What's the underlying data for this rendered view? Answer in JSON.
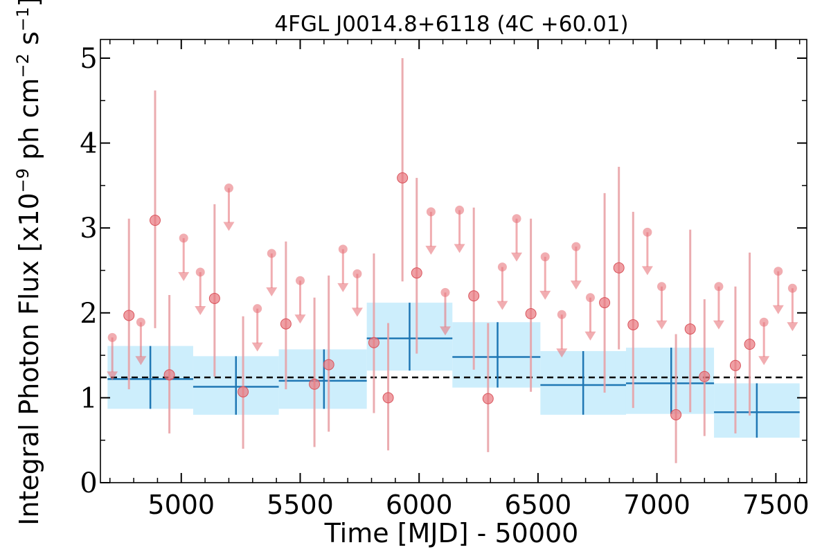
{
  "chart_data": {
    "type": "scatter",
    "title": "4FGL J0014.8+6118 (4C +60.01)",
    "xlabel": "Time [MJD] - 50000",
    "ylabel": "Integral Photon Flux [x10",
    "ylabel_exp": "−9",
    "ylabel_unit1": " ph cm",
    "ylabel_exp2": "−2",
    "ylabel_unit2": " s",
    "ylabel_exp3": "−1",
    "ylabel_close": "]",
    "xlim": [
      4660,
      7630
    ],
    "ylim": [
      0,
      5.22
    ],
    "xticks": [
      5000,
      5500,
      6000,
      6500,
      7000,
      7500
    ],
    "yticks": [
      0,
      1,
      2,
      3,
      4,
      5
    ],
    "grid": false,
    "colors": {
      "points": "#e8767d",
      "errorbars": "#e89ea2",
      "binned": "#1f77b4",
      "band": "#cdeefc",
      "mean_line": "#000000"
    },
    "mean_flux": 1.24,
    "series": [
      {
        "kind": "detections",
        "points": [
          {
            "x": 4780,
            "y": 1.97,
            "lo": 1.1,
            "hi": 3.11
          },
          {
            "x": 4890,
            "y": 3.09,
            "lo": 1.82,
            "hi": 4.62
          },
          {
            "x": 4950,
            "y": 1.27,
            "lo": 0.58,
            "hi": 2.21
          },
          {
            "x": 5140,
            "y": 2.17,
            "lo": 1.25,
            "hi": 3.28
          },
          {
            "x": 5260,
            "y": 1.07,
            "lo": 0.4,
            "hi": 1.96
          },
          {
            "x": 5440,
            "y": 1.87,
            "lo": 1.1,
            "hi": 2.84
          },
          {
            "x": 5560,
            "y": 1.16,
            "lo": 0.42,
            "hi": 2.18
          },
          {
            "x": 5620,
            "y": 1.39,
            "lo": 0.6,
            "hi": 2.44
          },
          {
            "x": 5810,
            "y": 1.65,
            "lo": 0.82,
            "hi": 2.7
          },
          {
            "x": 5870,
            "y": 1.0,
            "lo": 0.38,
            "hi": 1.88
          },
          {
            "x": 5930,
            "y": 3.59,
            "lo": 2.37,
            "hi": 5.0
          },
          {
            "x": 5990,
            "y": 2.47,
            "lo": 1.52,
            "hi": 3.59
          },
          {
            "x": 6230,
            "y": 2.2,
            "lo": 1.33,
            "hi": 3.24
          },
          {
            "x": 6290,
            "y": 0.99,
            "lo": 0.36,
            "hi": 1.88
          },
          {
            "x": 6470,
            "y": 1.99,
            "lo": 1.07,
            "hi": 3.11
          },
          {
            "x": 6780,
            "y": 2.12,
            "lo": 1.06,
            "hi": 3.41
          },
          {
            "x": 6840,
            "y": 2.53,
            "lo": 1.57,
            "hi": 3.72
          },
          {
            "x": 6900,
            "y": 1.86,
            "lo": 0.88,
            "hi": 3.19
          },
          {
            "x": 7080,
            "y": 0.8,
            "lo": 0.23,
            "hi": 1.75
          },
          {
            "x": 7140,
            "y": 1.81,
            "lo": 0.83,
            "hi": 2.98
          },
          {
            "x": 7200,
            "y": 1.25,
            "lo": 0.55,
            "hi": 2.16
          },
          {
            "x": 7330,
            "y": 1.38,
            "lo": 0.58,
            "hi": 2.31
          },
          {
            "x": 7390,
            "y": 1.63,
            "lo": 0.79,
            "hi": 2.71
          }
        ]
      },
      {
        "kind": "upper_limits",
        "points": [
          {
            "x": 4710,
            "y": 1.71
          },
          {
            "x": 4830,
            "y": 1.89
          },
          {
            "x": 5010,
            "y": 2.88
          },
          {
            "x": 5080,
            "y": 2.48
          },
          {
            "x": 5200,
            "y": 3.47
          },
          {
            "x": 5320,
            "y": 2.05
          },
          {
            "x": 5380,
            "y": 2.7
          },
          {
            "x": 5500,
            "y": 2.38
          },
          {
            "x": 5680,
            "y": 2.75
          },
          {
            "x": 5740,
            "y": 2.46
          },
          {
            "x": 6050,
            "y": 3.19
          },
          {
            "x": 6110,
            "y": 2.24
          },
          {
            "x": 6170,
            "y": 3.21
          },
          {
            "x": 6350,
            "y": 2.54
          },
          {
            "x": 6410,
            "y": 3.11
          },
          {
            "x": 6530,
            "y": 2.66
          },
          {
            "x": 6600,
            "y": 1.98
          },
          {
            "x": 6660,
            "y": 2.78
          },
          {
            "x": 6720,
            "y": 2.18
          },
          {
            "x": 6960,
            "y": 2.95
          },
          {
            "x": 7020,
            "y": 2.31
          },
          {
            "x": 7260,
            "y": 2.31
          },
          {
            "x": 7450,
            "y": 1.89
          },
          {
            "x": 7510,
            "y": 2.49
          },
          {
            "x": 7570,
            "y": 2.29
          }
        ]
      },
      {
        "kind": "binned",
        "points": [
          {
            "x0": 4690,
            "x1": 5050,
            "xc": 4870,
            "y": 1.22,
            "lo": 0.87,
            "hi": 1.61
          },
          {
            "x0": 5050,
            "x1": 5410,
            "xc": 5230,
            "y": 1.13,
            "lo": 0.8,
            "hi": 1.49
          },
          {
            "x0": 5410,
            "x1": 5780,
            "xc": 5600,
            "y": 1.2,
            "lo": 0.87,
            "hi": 1.57
          },
          {
            "x0": 5780,
            "x1": 6140,
            "xc": 5960,
            "y": 1.7,
            "lo": 1.32,
            "hi": 2.12
          },
          {
            "x0": 6140,
            "x1": 6510,
            "xc": 6330,
            "y": 1.48,
            "lo": 1.12,
            "hi": 1.89
          },
          {
            "x0": 6510,
            "x1": 6870,
            "xc": 6690,
            "y": 1.15,
            "lo": 0.8,
            "hi": 1.55
          },
          {
            "x0": 6870,
            "x1": 7240,
            "xc": 7060,
            "y": 1.17,
            "lo": 0.81,
            "hi": 1.59
          },
          {
            "x0": 7240,
            "x1": 7600,
            "xc": 7420,
            "y": 0.83,
            "lo": 0.53,
            "hi": 1.17
          }
        ]
      }
    ]
  }
}
